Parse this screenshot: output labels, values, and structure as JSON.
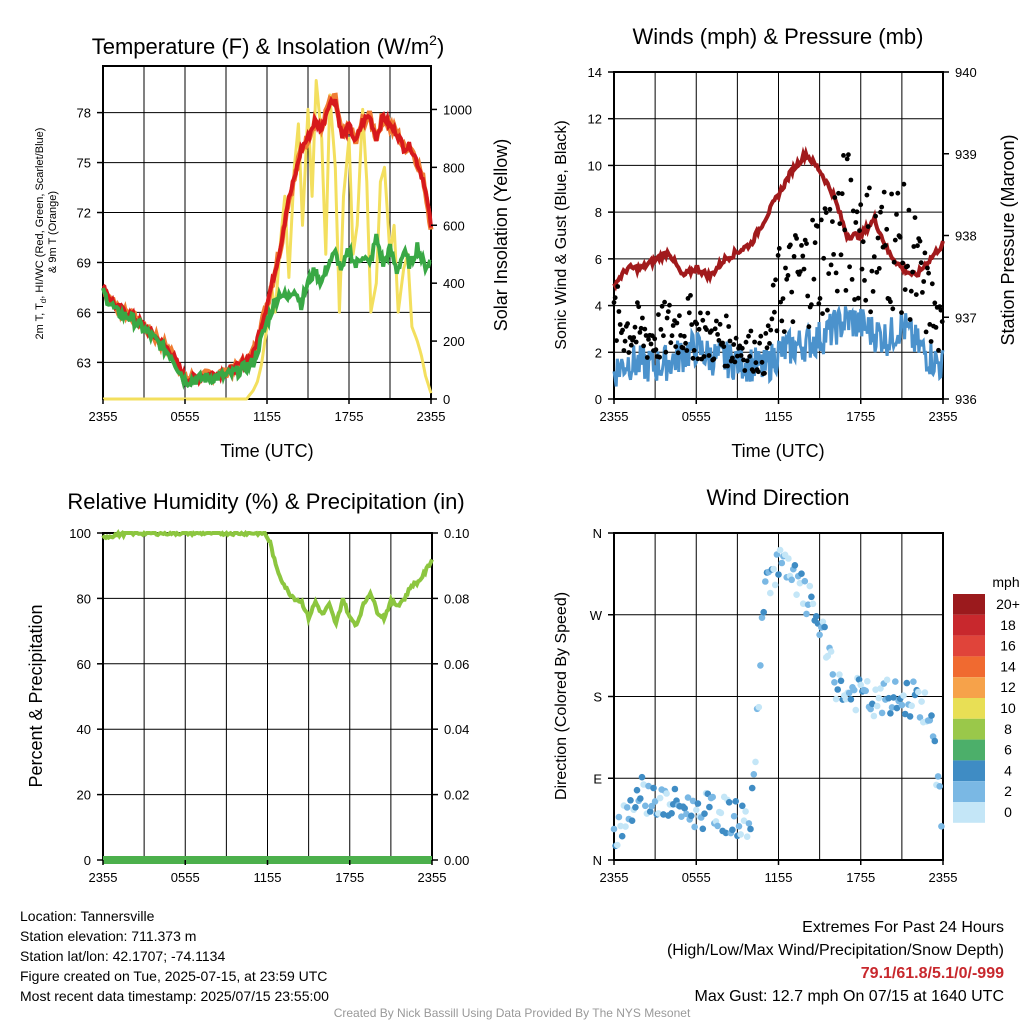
{
  "colors": {
    "temp": "#d7191c",
    "dewpoint": "#e66101",
    "wetbulb": "#39a845",
    "temp9m": "#f07d33",
    "insolation": "#f3df5e",
    "pressure": "#a11a1c",
    "wind": "#4b92cc",
    "gust": "#000000",
    "rh": "#8cc63f",
    "precip": "#4cb04c"
  },
  "chart_data": [
    {
      "type": "line",
      "title": "Temperature (F) & Insolation (W/m²)",
      "xlabel": "Time (UTC)",
      "ylabel": "2m T, Td, HI/WC (Red, Green, Scarlet/Blue) & 9m T (Orange)",
      "y2label": "Solar Insolation (Yellow)",
      "xticks": [
        "2355",
        "0555",
        "1155",
        "1755",
        "2355"
      ],
      "yticks": [
        "63",
        "66",
        "69",
        "72",
        "75",
        "78"
      ],
      "y2ticks": [
        "0",
        "200",
        "400",
        "600",
        "800",
        "1000"
      ],
      "ylim": [
        60.8,
        80.8
      ],
      "y2lim": [
        0,
        1150
      ],
      "series": [
        {
          "hours": [
            0,
            1,
            2,
            3,
            4,
            5,
            6,
            7,
            8,
            9,
            10,
            11,
            11.5,
            12,
            12.5,
            13,
            13.5,
            14,
            14.5,
            15,
            15.5,
            16,
            16.5,
            17,
            17.5,
            18,
            18.5,
            19,
            19.5,
            20,
            20.5,
            21,
            21.5,
            22,
            22.5,
            23,
            23.5,
            24
          ],
          "values": [
            67.5,
            66.3,
            65.9,
            65.2,
            64.4,
            63.6,
            62.0,
            62.1,
            62.3,
            62.4,
            62.8,
            63.5,
            65.0,
            66.5,
            68.2,
            70.0,
            72.5,
            74.0,
            75.8,
            76.5,
            77.5,
            77.0,
            78.5,
            78.8,
            76.5,
            77.2,
            76.2,
            77.5,
            77.8,
            76.5,
            77.8,
            77.2,
            76.8,
            75.9,
            76.0,
            75.0,
            73.8,
            71.2
          ]
        },
        {
          "hours": [
            0,
            1,
            2,
            3,
            4,
            5,
            6,
            7,
            8,
            9,
            10,
            11,
            11.5,
            12,
            12.5,
            13,
            13.5,
            14,
            14.5,
            15,
            15.5,
            16,
            16.5,
            17,
            17.5,
            18,
            18.5,
            19,
            19.5,
            20,
            20.5,
            21,
            21.5,
            22,
            22.5,
            23,
            23.5,
            24
          ],
          "values": [
            67.2,
            66.0,
            65.7,
            65.0,
            64.2,
            63.4,
            61.9,
            62.0,
            62.1,
            62.2,
            62.5,
            63.0,
            64.2,
            65.4,
            66.5,
            67.2,
            66.8,
            67.5,
            66.5,
            67.8,
            68.5,
            67.8,
            69.0,
            69.5,
            68.5,
            69.8,
            68.8,
            69.5,
            68.8,
            70.5,
            68.9,
            69.8,
            68.5,
            69.6,
            68.8,
            70.0,
            68.8,
            69.0
          ]
        },
        {
          "hours": [
            0,
            0.5,
            1,
            1.5,
            2,
            2.5,
            3,
            3.5,
            4,
            4.5,
            5,
            5.5,
            6,
            6.5,
            7,
            7.5,
            8,
            8.5,
            9,
            9.5,
            10,
            10.5,
            11,
            11.3,
            11.6,
            12,
            12.3,
            12.6,
            13,
            13.3,
            13.6,
            14,
            14.3,
            14.6,
            15,
            15.3,
            15.6,
            16,
            16.3,
            16.6,
            17,
            17.3,
            17.6,
            18,
            18.3,
            18.6,
            19,
            19.3,
            19.6,
            20,
            20.3,
            20.6,
            21,
            21.3,
            21.6,
            22,
            22.3,
            22.6,
            23,
            23.3,
            23.6,
            24
          ],
          "values": [
            0,
            0,
            0,
            0,
            0,
            0,
            0,
            0,
            0,
            0,
            0,
            0,
            0,
            0,
            0,
            0,
            0,
            0,
            0,
            0,
            0,
            0,
            30,
            60,
            120,
            250,
            400,
            300,
            550,
            700,
            420,
            800,
            950,
            600,
            1000,
            700,
            1100,
            900,
            500,
            1050,
            800,
            300,
            700,
            900,
            500,
            600,
            1000,
            750,
            300,
            400,
            750,
            800,
            500,
            600,
            300,
            450,
            500,
            250,
            200,
            150,
            80,
            20
          ]
        }
      ]
    },
    {
      "type": "scatter",
      "title": "Winds (mph) & Pressure (mb)",
      "xlabel": "Time (UTC)",
      "ylabel": "Sonic Wind & Gust (Blue, Black)",
      "y2label": "Station Pressure (Maroon)",
      "xticks": [
        "2355",
        "0555",
        "1155",
        "1755",
        "2355"
      ],
      "yticks": [
        "0",
        "2",
        "4",
        "6",
        "8",
        "10",
        "12",
        "14"
      ],
      "y2ticks": [
        "936",
        "937",
        "938",
        "939",
        "940"
      ],
      "ylim": [
        0,
        14
      ],
      "y2lim": [
        936,
        940
      ],
      "series": [
        {
          "hours": [
            0,
            1,
            2,
            3,
            4,
            5,
            6,
            7,
            8,
            9,
            10,
            11,
            12,
            13,
            14,
            15,
            16,
            17,
            18,
            19,
            20,
            21,
            22,
            23,
            24
          ],
          "values": [
            937.4,
            937.6,
            937.6,
            937.7,
            937.8,
            937.5,
            937.6,
            937.5,
            937.7,
            937.8,
            937.9,
            938.2,
            938.5,
            938.8,
            939.0,
            938.8,
            938.5,
            938.0,
            938.0,
            938.2,
            937.8,
            937.6,
            937.5,
            937.7,
            937.9
          ]
        },
        {
          "hours": [
            0,
            1,
            2,
            3,
            4,
            5,
            6,
            7,
            8,
            9,
            10,
            11,
            12,
            13,
            14,
            15,
            16,
            17,
            18,
            19,
            20,
            21,
            22,
            23,
            24
          ],
          "values": [
            1.2,
            1.6,
            1.5,
            1.4,
            1.6,
            1.9,
            2.2,
            1.8,
            1.7,
            1.6,
            1.5,
            1.3,
            2.0,
            2.2,
            2.4,
            2.6,
            3.0,
            3.4,
            3.2,
            2.8,
            2.6,
            3.2,
            2.4,
            1.8,
            1.4
          ]
        },
        {
          "hours": [
            0,
            1,
            2,
            3,
            4,
            5,
            6,
            7,
            8,
            9,
            10,
            11,
            12,
            13,
            14,
            15,
            16,
            17,
            18,
            19,
            20,
            21,
            22,
            23,
            24
          ],
          "values": [
            3.5,
            3.0,
            2.8,
            2.6,
            3.0,
            3.2,
            3.0,
            2.6,
            2.5,
            2.3,
            2.1,
            1.8,
            4.5,
            5.0,
            5.5,
            6.0,
            6.8,
            7.5,
            7.2,
            6.2,
            6.8,
            6.5,
            5.5,
            4.0,
            2.5
          ]
        }
      ]
    },
    {
      "type": "line",
      "title": "Relative Humidity (%) & Precipitation (in)",
      "ylabel": "Percent & Precipitation",
      "xticks": [
        "2355",
        "0555",
        "1155",
        "1755",
        "2355"
      ],
      "yticks": [
        "0",
        "20",
        "40",
        "60",
        "80",
        "100"
      ],
      "y2ticks": [
        "0.00",
        "0.02",
        "0.04",
        "0.06",
        "0.08",
        "0.10"
      ],
      "ylim": [
        0,
        100
      ],
      "y2lim": [
        0,
        0.1
      ],
      "series": [
        {
          "hours": [
            0,
            0.5,
            1,
            2,
            3,
            4,
            5,
            6,
            7,
            8,
            9,
            10,
            11,
            11.8,
            12.2,
            12.6,
            13,
            13.5,
            14,
            14.5,
            15,
            15.5,
            16,
            16.5,
            17,
            17.5,
            18,
            18.5,
            19,
            19.5,
            20,
            20.5,
            21,
            21.5,
            22,
            22.5,
            23,
            23.5,
            24
          ],
          "values": [
            99,
            99,
            99.5,
            100,
            100,
            100,
            100,
            100,
            100,
            100,
            100,
            100,
            100,
            100,
            97,
            90,
            86,
            82,
            80,
            79,
            74,
            79,
            75,
            78,
            72,
            80,
            74,
            72,
            78,
            82,
            76,
            74,
            79,
            78,
            80,
            84,
            85,
            88,
            92
          ]
        },
        {
          "hours": [
            0,
            24
          ],
          "values": [
            0,
            0
          ]
        }
      ]
    },
    {
      "type": "scatter",
      "title": "Wind Direction",
      "ylabel": "Direction (Colored By Speed)",
      "xticks": [
        "2355",
        "0555",
        "1155",
        "1755",
        "2355"
      ],
      "yticks": [
        "N",
        "E",
        "S",
        "W",
        "N"
      ],
      "ylim": [
        0,
        360
      ],
      "legend": {
        "title": "mph",
        "labels": [
          "20+",
          "18",
          "16",
          "14",
          "12",
          "10",
          "8",
          "6",
          "4",
          "2",
          "0"
        ],
        "colors": [
          "#9b1a1d",
          "#c8282d",
          "#e0443a",
          "#f06a30",
          "#f6a24a",
          "#e8df55",
          "#9ac84a",
          "#4caf6a",
          "#3f8cc4",
          "#7ab8e4",
          "#c4e6f7"
        ]
      },
      "series": [
        {
          "hours": [
            0,
            1,
            2,
            3,
            4,
            5,
            6,
            7,
            8,
            9,
            10,
            11,
            12,
            13,
            14,
            15,
            16,
            17,
            18,
            19,
            20,
            21,
            22,
            23,
            24
          ],
          "values": [
            30,
            55,
            75,
            65,
            60,
            58,
            52,
            55,
            50,
            45,
            40,
            300,
            330,
            310,
            290,
            260,
            200,
            180,
            185,
            170,
            180,
            175,
            180,
            160,
            40
          ]
        }
      ]
    }
  ],
  "footer": {
    "location": "Location: Tannersville",
    "elevation": "Station elevation: 711.373 m",
    "latlon": "Station lat/lon: 42.1707; -74.1134",
    "created": "Figure created on Tue, 2025-07-15, at 23:59 UTC",
    "recent": "Most recent data timestamp: 2025/07/15 23:55:00",
    "extremes_title": "Extremes For Past 24 Hours",
    "extremes_sub": "(High/Low/Max Wind/Precipitation/Snow Depth)",
    "extremes_values": "79.1/61.8/5.1/0/-999",
    "max_gust": "Max Gust: 12.7 mph On 07/15 at 1640 UTC",
    "credit": "Created By Nick Bassill Using Data Provided By The NYS Mesonet"
  }
}
